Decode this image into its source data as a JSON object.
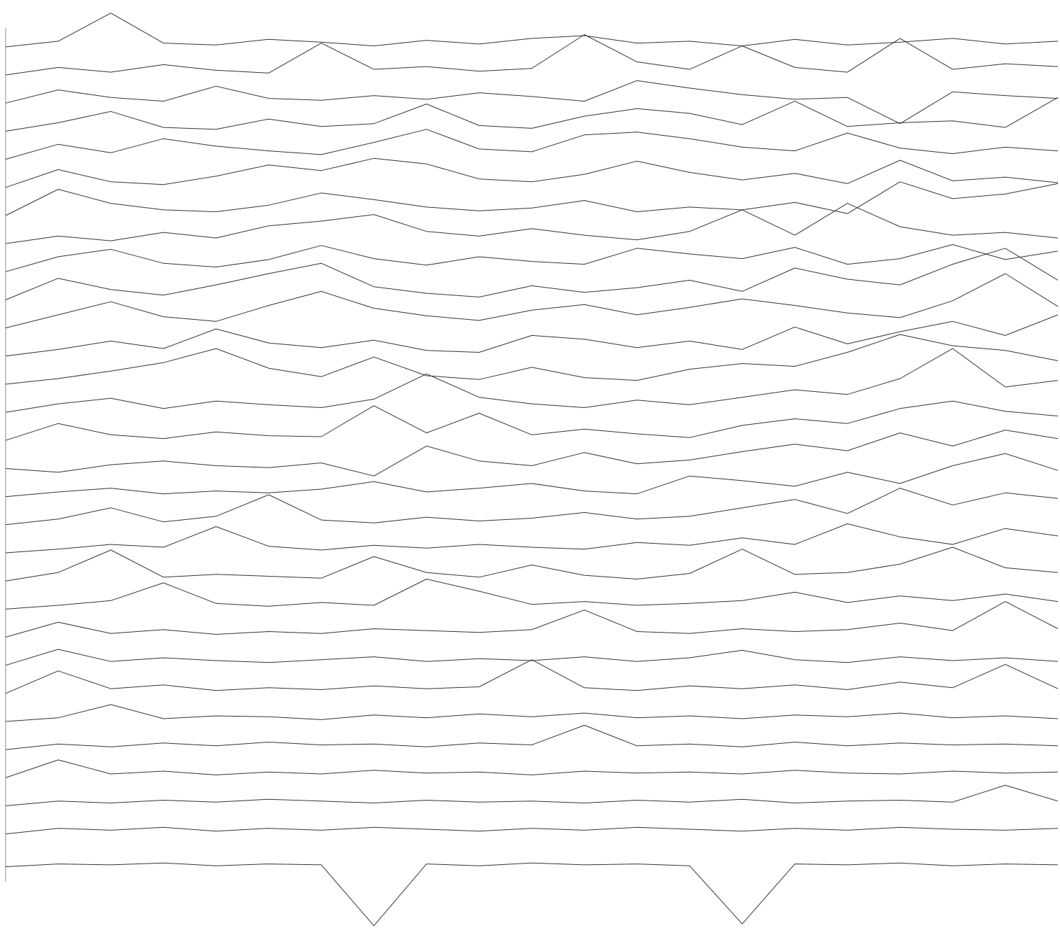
{
  "chart_data": {
    "type": "line",
    "color": "#333333",
    "x": [
      0,
      5,
      10,
      15,
      20,
      25,
      30,
      35,
      40,
      45,
      50,
      55,
      60,
      65,
      70,
      75,
      80,
      85,
      90,
      95,
      100
    ],
    "xlim": [
      0,
      100
    ],
    "ylim": [
      0,
      100
    ],
    "series": [
      {
        "values": [
          95,
          95.6,
          98.6,
          95.4,
          95.2,
          95.8,
          95.5,
          95.1,
          95.7,
          95.3,
          95.9,
          96.2,
          95.4,
          95.6,
          95.1,
          95.8,
          95.2,
          95.5,
          95.9,
          95.3,
          95.6
        ]
      },
      {
        "values": [
          92,
          92.8,
          92.3,
          93.1,
          92.5,
          92.2,
          95.4,
          92.6,
          92.9,
          92.4,
          92.7,
          96.3,
          93.4,
          92.6,
          95.1,
          92.8,
          92.3,
          95.9,
          92.6,
          93.2,
          92.9
        ]
      },
      {
        "values": [
          89,
          90.4,
          89.6,
          89.2,
          90.8,
          89.5,
          89.3,
          89.8,
          89.4,
          90.1,
          89.7,
          89.2,
          91.4,
          90.6,
          89.9,
          89.4,
          89.6,
          86.8,
          90.2,
          89.8,
          89.5
        ]
      },
      {
        "values": [
          86,
          86.9,
          88.1,
          86.4,
          86.2,
          87.3,
          86.5,
          86.8,
          88.9,
          86.6,
          86.3,
          87.6,
          88.4,
          87.9,
          86.7,
          89.2,
          86.5,
          86.9,
          87.1,
          86.4,
          89.6
        ]
      },
      {
        "values": [
          83,
          84.6,
          83.7,
          85.2,
          84.4,
          83.9,
          83.5,
          84.8,
          86.2,
          84.1,
          83.8,
          85.6,
          85.9,
          85.2,
          84.3,
          83.9,
          85.8,
          84.2,
          83.6,
          84.3,
          83.9
        ]
      },
      {
        "values": [
          80,
          81.9,
          80.6,
          80.3,
          81.2,
          82.4,
          81.8,
          83.1,
          82.5,
          80.9,
          80.6,
          81.4,
          82.8,
          81.6,
          80.8,
          81.5,
          80.4,
          82.9,
          80.7,
          81.1,
          80.5
        ]
      },
      {
        "values": [
          77,
          79.8,
          78.3,
          77.6,
          77.4,
          78.1,
          79.4,
          78.7,
          77.9,
          77.5,
          77.8,
          78.6,
          77.4,
          77.9,
          77.6,
          78.4,
          77.2,
          80.6,
          78.8,
          79.3,
          80.4
        ]
      },
      {
        "values": [
          74,
          74.8,
          74.3,
          75.2,
          74.6,
          75.9,
          76.4,
          77.1,
          75.3,
          74.8,
          75.6,
          74.9,
          74.4,
          75.3,
          77.6,
          74.9,
          78.3,
          75.8,
          74.9,
          75.2,
          74.6
        ]
      },
      {
        "values": [
          71,
          72.6,
          73.4,
          71.9,
          71.5,
          72.3,
          73.8,
          72.4,
          71.7,
          72.6,
          72.1,
          71.8,
          73.5,
          72.9,
          72.4,
          73.6,
          71.8,
          72.4,
          73.9,
          72.3,
          73.2
        ]
      },
      {
        "values": [
          68,
          70.3,
          69.1,
          68.5,
          69.6,
          70.8,
          71.9,
          69.4,
          68.7,
          68.3,
          69.5,
          68.8,
          69.3,
          70.1,
          68.9,
          71.4,
          70.2,
          69.6,
          71.8,
          73.5,
          70.1
        ]
      },
      {
        "values": [
          65,
          66.4,
          67.8,
          66.2,
          65.7,
          67.4,
          68.9,
          67.1,
          66.3,
          65.8,
          66.9,
          67.5,
          66.4,
          67.2,
          68.1,
          67.4,
          66.6,
          66.1,
          67.9,
          70.8,
          67.3
        ]
      },
      {
        "values": [
          62,
          62.7,
          63.6,
          62.8,
          64.9,
          63.4,
          62.9,
          63.7,
          62.6,
          62.4,
          64.2,
          63.8,
          62.9,
          63.6,
          62.7,
          65.1,
          63.3,
          64.6,
          65.7,
          64.2,
          66.4
        ]
      },
      {
        "values": [
          59,
          59.6,
          60.4,
          61.3,
          62.8,
          60.7,
          59.8,
          61.9,
          59.9,
          59.5,
          60.8,
          59.7,
          59.4,
          60.6,
          61.2,
          60.9,
          62.4,
          64.3,
          63.1,
          62.6,
          61.5
        ]
      },
      {
        "values": [
          56,
          56.9,
          57.5,
          56.4,
          57.2,
          56.8,
          56.5,
          57.4,
          60.1,
          57.6,
          56.9,
          56.5,
          57.3,
          56.8,
          57.6,
          58.4,
          57.9,
          59.6,
          62.8,
          58.7,
          59.4
        ]
      },
      {
        "values": [
          53,
          54.8,
          53.6,
          53.2,
          53.9,
          53.5,
          53.4,
          56.7,
          53.8,
          55.9,
          53.6,
          54.2,
          53.7,
          53.3,
          54.6,
          55.3,
          54.8,
          56.4,
          57.2,
          56.1,
          55.6
        ]
      },
      {
        "values": [
          50,
          49.6,
          50.4,
          50.8,
          50.3,
          50.1,
          50.6,
          49.2,
          52.4,
          50.8,
          50.3,
          51.7,
          50.5,
          50.9,
          51.8,
          52.6,
          51.9,
          53.8,
          52.4,
          54.1,
          53.2
        ]
      },
      {
        "values": [
          47,
          47.5,
          47.9,
          47.3,
          47.6,
          47.4,
          47.8,
          48.6,
          47.5,
          47.9,
          48.4,
          47.6,
          47.3,
          49.2,
          48.7,
          48.1,
          49.6,
          48.4,
          50.3,
          51.6,
          49.8
        ]
      },
      {
        "values": [
          44,
          44.6,
          45.8,
          44.3,
          44.9,
          47.2,
          44.5,
          44.2,
          44.8,
          44.4,
          44.7,
          45.3,
          44.6,
          44.9,
          45.8,
          46.7,
          45.2,
          47.9,
          46.1,
          47.4,
          46.8
        ]
      },
      {
        "values": [
          41,
          41.4,
          41.9,
          41.6,
          43.8,
          41.7,
          41.3,
          41.8,
          41.5,
          41.9,
          41.6,
          41.4,
          42.1,
          41.8,
          42.6,
          41.9,
          44.1,
          42.7,
          41.9,
          43.6,
          42.8
        ]
      },
      {
        "values": [
          38,
          38.9,
          41.3,
          38.4,
          38.7,
          38.5,
          38.3,
          40.6,
          38.9,
          38.4,
          39.7,
          38.6,
          38.2,
          38.8,
          41.4,
          38.7,
          38.9,
          39.8,
          41.6,
          39.4,
          38.9
        ]
      },
      {
        "values": [
          35,
          35.4,
          35.9,
          37.8,
          35.6,
          35.3,
          35.7,
          35.4,
          38.2,
          36.9,
          35.5,
          35.8,
          35.4,
          35.6,
          35.9,
          36.8,
          35.7,
          36.4,
          35.9,
          36.6,
          35.8
        ]
      },
      {
        "values": [
          32,
          33.6,
          32.4,
          32.8,
          32.3,
          32.6,
          32.4,
          32.9,
          32.7,
          32.5,
          32.8,
          34.9,
          32.6,
          32.4,
          32.9,
          32.6,
          32.8,
          33.5,
          32.7,
          35.8,
          32.9
        ]
      },
      {
        "values": [
          29,
          30.7,
          29.4,
          29.8,
          29.5,
          29.3,
          29.6,
          29.9,
          29.4,
          29.7,
          29.5,
          29.9,
          29.4,
          29.8,
          30.6,
          29.6,
          29.3,
          29.9,
          29.5,
          29.8,
          29.4
        ]
      },
      {
        "values": [
          26,
          28.4,
          26.5,
          26.9,
          26.3,
          26.6,
          26.4,
          26.8,
          26.5,
          26.7,
          29.6,
          26.6,
          26.3,
          26.8,
          26.5,
          26.9,
          26.4,
          27.2,
          26.6,
          29.1,
          26.5
        ]
      },
      {
        "values": [
          23,
          23.4,
          24.8,
          23.3,
          23.6,
          23.5,
          23.2,
          23.7,
          23.4,
          23.8,
          23.5,
          23.9,
          23.4,
          23.6,
          23.3,
          23.7,
          23.5,
          23.9,
          23.4,
          23.6,
          23.3
        ]
      },
      {
        "values": [
          20,
          20.6,
          20.3,
          20.7,
          20.4,
          20.8,
          20.5,
          20.6,
          20.3,
          20.7,
          20.5,
          22.6,
          20.4,
          20.6,
          20.3,
          20.8,
          20.4,
          20.7,
          20.5,
          20.6,
          20.4
        ]
      },
      {
        "values": [
          17,
          18.9,
          17.4,
          17.7,
          17.3,
          17.6,
          17.4,
          17.8,
          17.5,
          17.6,
          17.3,
          17.7,
          17.5,
          17.6,
          17.4,
          17.8,
          17.5,
          17.4,
          17.7,
          17.5,
          17.6
        ]
      },
      {
        "values": [
          14,
          14.5,
          14.3,
          14.6,
          14.4,
          14.7,
          14.5,
          14.3,
          14.6,
          14.4,
          14.5,
          14.3,
          14.6,
          14.4,
          14.7,
          14.3,
          14.5,
          14.6,
          14.4,
          16.2,
          14.5
        ]
      },
      {
        "values": [
          11,
          11.6,
          11.4,
          11.7,
          11.3,
          11.6,
          11.4,
          11.7,
          11.5,
          11.3,
          11.6,
          11.4,
          11.7,
          11.5,
          11.3,
          11.6,
          11.4,
          11.7,
          11.5,
          11.4,
          11.6
        ]
      },
      {
        "values": [
          7.5,
          7.8,
          7.7,
          7.9,
          7.6,
          7.8,
          7.7,
          1.2,
          7.8,
          7.6,
          7.9,
          7.7,
          7.8,
          7.6,
          1.4,
          7.8,
          7.7,
          7.9,
          7.6,
          7.8,
          7.7
        ]
      }
    ]
  }
}
